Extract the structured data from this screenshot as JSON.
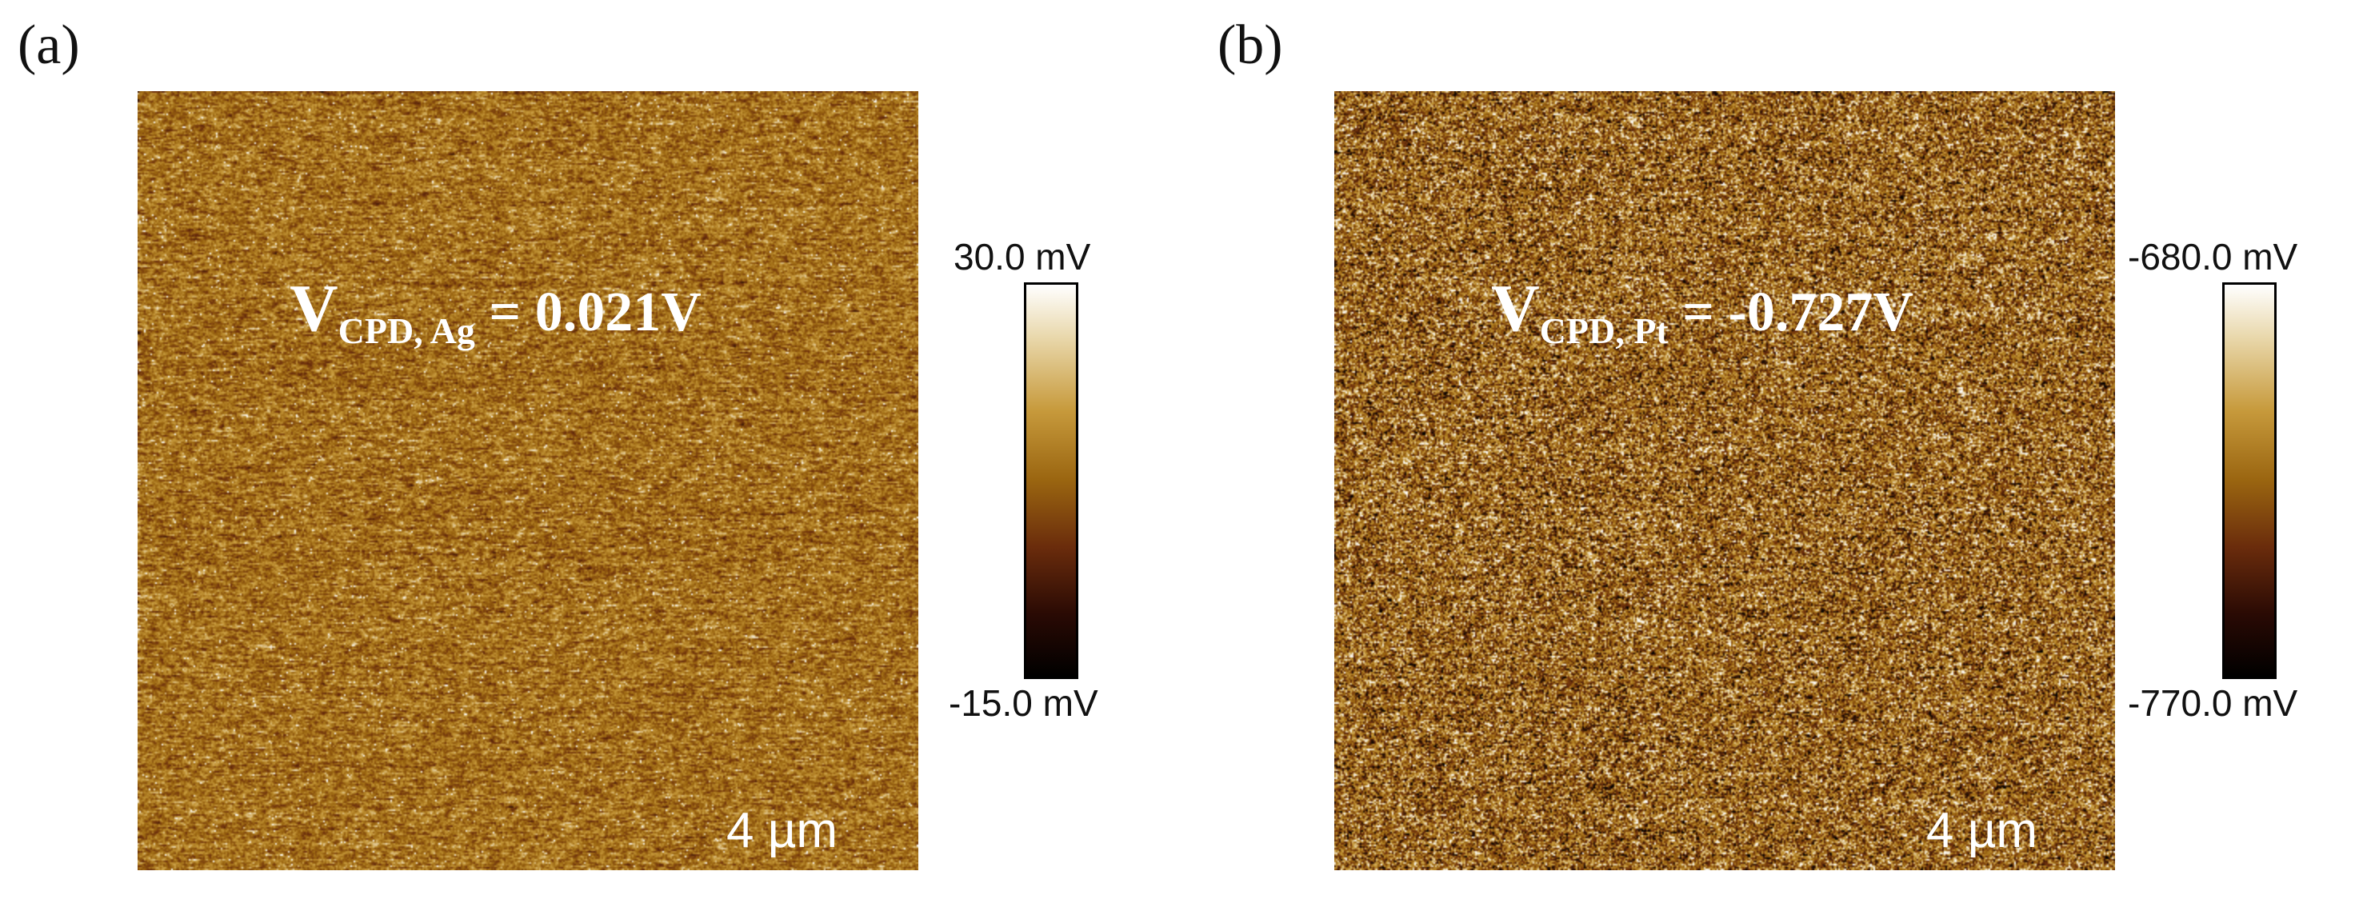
{
  "panels": [
    {
      "letter": "(a)",
      "vcpd_symbol": "V",
      "vcpd_subscript": "CPD, Ag",
      "vcpd_value": " = 0.021V",
      "scale_bar": "4 µm",
      "colorbar_max": "30.0 mV",
      "colorbar_min": "-15.0 mV",
      "colormap": [
        "#000000",
        "#6a2c0c",
        "#9a6510",
        "#c79a3c",
        "#ffffff"
      ]
    },
    {
      "letter": "(b)",
      "vcpd_symbol": "V",
      "vcpd_subscript": "CPD, Pt",
      "vcpd_value": " = -0.727V",
      "scale_bar": "4 µm",
      "colorbar_max": "-680.0 mV",
      "colorbar_min": "-770.0 mV",
      "colormap": [
        "#000000",
        "#6a2c0c",
        "#9a6510",
        "#c79a3c",
        "#ffffff"
      ]
    }
  ]
}
